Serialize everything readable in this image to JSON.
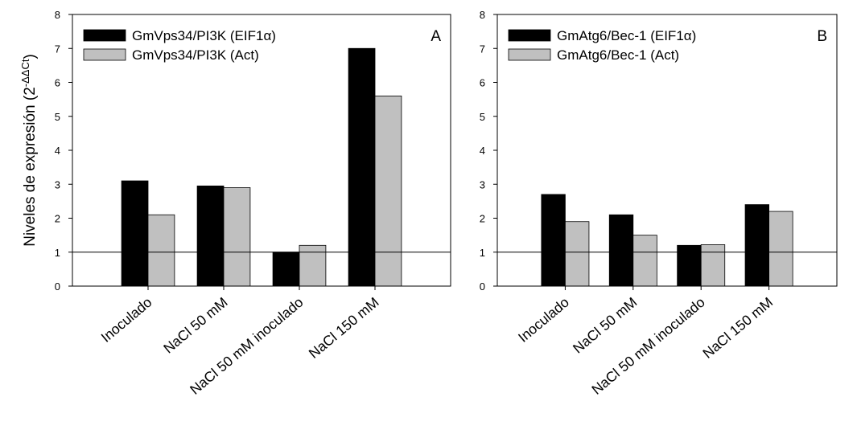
{
  "ylabel": {
    "main": "Niveles de expresión (2",
    "sup": "-ΔΔCt",
    "close": ")"
  },
  "chart_data": [
    {
      "type": "bar",
      "panel_label": "A",
      "categories": [
        "Inoculado",
        "NaCl 50 mM",
        "NaCl 50 mM inoculado",
        "NaCl 150 mM"
      ],
      "series": [
        {
          "name": "GmVps34/PI3K (EIF1α)",
          "values": [
            3.1,
            2.95,
            1.0,
            7.0
          ],
          "color": "#000000"
        },
        {
          "name": "GmVps34/PI3K (Act)",
          "values": [
            2.1,
            2.9,
            1.2,
            5.6
          ],
          "color": "#c0c0c0"
        }
      ],
      "ylim": [
        0,
        8
      ],
      "yticks": [
        0,
        1,
        2,
        3,
        4,
        5,
        6,
        7,
        8
      ],
      "reference_line": 1,
      "legend_position": "top-left",
      "grid": false
    },
    {
      "type": "bar",
      "panel_label": "B",
      "categories": [
        "Inoculado",
        "NaCl 50 mM",
        "NaCl 50 mM inoculado",
        "NaCl 150 mM"
      ],
      "series": [
        {
          "name": "GmAtg6/Bec-1 (EIF1α)",
          "values": [
            2.7,
            2.1,
            1.2,
            2.4
          ],
          "color": "#000000"
        },
        {
          "name": "GmAtg6/Bec-1 (Act)",
          "values": [
            1.9,
            1.5,
            1.22,
            2.2
          ],
          "color": "#c0c0c0"
        }
      ],
      "ylim": [
        0,
        8
      ],
      "yticks": [
        0,
        1,
        2,
        3,
        4,
        5,
        6,
        7,
        8
      ],
      "reference_line": 1,
      "legend_position": "top-left",
      "grid": false
    }
  ]
}
